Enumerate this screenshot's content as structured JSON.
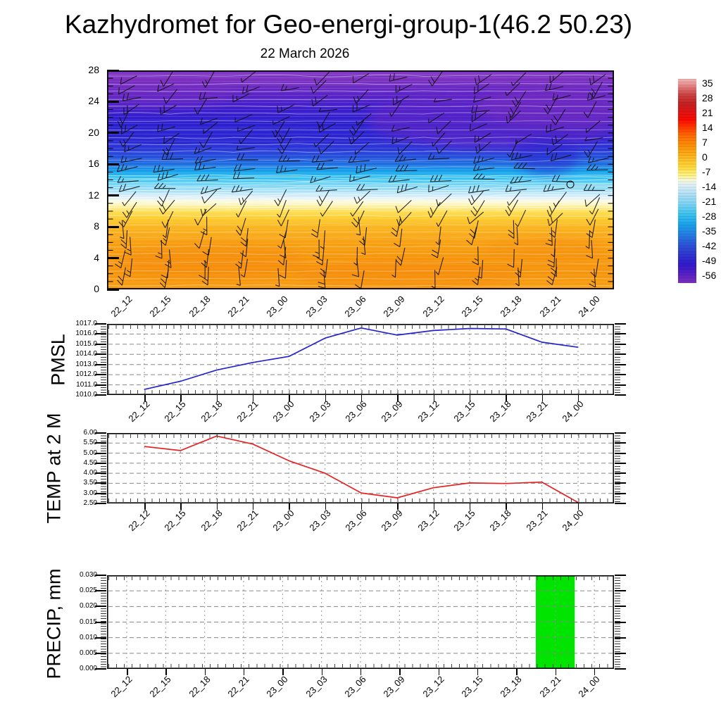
{
  "title": "Kazhydromet for Geo-energi-group-1(46.2 50.23)",
  "subtitle": "22 March 2026",
  "time_labels": [
    "22_12",
    "22_15",
    "22_18",
    "22_21",
    "23_00",
    "23_03",
    "23_06",
    "23_09",
    "23_12",
    "23_15",
    "23_18",
    "23_21",
    "24_00"
  ],
  "colorbar": {
    "tick_labels": [
      "35",
      "28",
      "21",
      "14",
      "7",
      "0",
      "-7",
      "-14",
      "-21",
      "-28",
      "-35",
      "-42",
      "-49",
      "-56"
    ],
    "gradient_stops": [
      [
        "0%",
        "#f0b4b4"
      ],
      [
        "2%",
        "#ec9c9c"
      ],
      [
        "5%",
        "#dc6a6a"
      ],
      [
        "8%",
        "#cc4040"
      ],
      [
        "12%",
        "#c42222"
      ],
      [
        "16%",
        "#e01414"
      ],
      [
        "20%",
        "#fa0a00"
      ],
      [
        "24%",
        "#ff3c00"
      ],
      [
        "28%",
        "#ff6c00"
      ],
      [
        "33%",
        "#fb9208"
      ],
      [
        "38%",
        "#fdb51e"
      ],
      [
        "43%",
        "#fed73a"
      ],
      [
        "47%",
        "#fef27e"
      ],
      [
        "50%",
        "#f6f8e0"
      ],
      [
        "52%",
        "#dfeff7"
      ],
      [
        "56%",
        "#b5e2f7"
      ],
      [
        "61%",
        "#7fd4f4"
      ],
      [
        "66%",
        "#3fc4f0"
      ],
      [
        "71%",
        "#1ba4ec"
      ],
      [
        "76%",
        "#2380e4"
      ],
      [
        "81%",
        "#2b57d8"
      ],
      [
        "86%",
        "#2f36d0"
      ],
      [
        "91%",
        "#3219cc"
      ],
      [
        "95%",
        "#521fc6"
      ],
      [
        "100%",
        "#7b2fbe"
      ]
    ]
  },
  "chart_data": [
    {
      "id": "temperature-height-cross-section",
      "type": "heatmap",
      "title": "22 March 2026",
      "x": [
        "22_12",
        "22_15",
        "22_18",
        "22_21",
        "23_00",
        "23_03",
        "23_06",
        "23_09",
        "23_12",
        "23_15",
        "23_18",
        "23_21",
        "24_00"
      ],
      "ylim": [
        0,
        28
      ],
      "yticks": [
        "28",
        "24",
        "20",
        "16",
        "12",
        "8",
        "4",
        "0"
      ],
      "colorbar_ticks": [
        35,
        28,
        21,
        14,
        7,
        0,
        -7,
        -14,
        -21,
        -28,
        -35,
        -42,
        -49,
        -56
      ],
      "overlay": "wind-barbs",
      "wind_barbs": {
        "seed": 11,
        "columns": 13,
        "rows": 21
      },
      "palette_stops_top_to_bottom": [
        [
          "0%",
          "#8038c4"
        ],
        [
          "4%",
          "#7b30c0"
        ],
        [
          "11%",
          "#5a24c6"
        ],
        [
          "18%",
          "#3a1ecc"
        ],
        [
          "25%",
          "#2b20ce"
        ],
        [
          "32%",
          "#2b28d2"
        ],
        [
          "36%",
          "#2c3ad8"
        ],
        [
          "40%",
          "#2456dc"
        ],
        [
          "43%",
          "#1e72e2"
        ],
        [
          "46%",
          "#17a2ec"
        ],
        [
          "49%",
          "#2ec0f2"
        ],
        [
          "52%",
          "#6cd2f5"
        ],
        [
          "55%",
          "#a5e0f8"
        ],
        [
          "57%",
          "#cbeafa"
        ],
        [
          "58.5%",
          "#e8f3f6"
        ],
        [
          "60%",
          "#fbfbdc"
        ],
        [
          "62%",
          "#fef0a0"
        ],
        [
          "64.5%",
          "#fedf55"
        ],
        [
          "68%",
          "#fdca2e"
        ],
        [
          "72%",
          "#fbb41e"
        ],
        [
          "77%",
          "#f9a414"
        ],
        [
          "84%",
          "#f79a0e"
        ],
        [
          "92%",
          "#f6940c"
        ],
        [
          "100%",
          "#f89e12"
        ]
      ]
    },
    {
      "id": "pmsl",
      "type": "line",
      "label": "PMSL",
      "color": "#2323cc",
      "x": [
        "22_12",
        "22_15",
        "22_18",
        "22_21",
        "23_00",
        "23_03",
        "23_06",
        "23_09",
        "23_12",
        "23_15",
        "23_18",
        "23_21",
        "24_00"
      ],
      "values": [
        1010.55,
        1011.35,
        1012.45,
        1013.2,
        1013.8,
        1015.6,
        1016.6,
        1015.9,
        1016.35,
        1016.55,
        1016.5,
        1015.2,
        1014.7
      ],
      "ylim": [
        1010,
        1017
      ],
      "yticks": [
        "1017.0",
        "1016.0",
        "1015.0",
        "1014.0",
        "1013.0",
        "1012.0",
        "1011.0",
        "1010.0"
      ]
    },
    {
      "id": "temp-2m",
      "type": "line",
      "label": "TEMP at 2 M",
      "color": "#e62222",
      "x": [
        "22_12",
        "22_15",
        "22_18",
        "22_21",
        "23_00",
        "23_03",
        "23_06",
        "23_09",
        "23_12",
        "23_15",
        "23_18",
        "23_21",
        "24_00"
      ],
      "values": [
        5.33,
        5.13,
        5.85,
        5.45,
        4.62,
        4.0,
        3.02,
        2.78,
        3.28,
        3.52,
        3.49,
        3.56,
        2.55
      ],
      "ylim": [
        2.5,
        6.0
      ],
      "yticks": [
        "6.00",
        "5.50",
        "5.00",
        "4.50",
        "4.00",
        "3.50",
        "3.00",
        "2.50"
      ]
    },
    {
      "id": "precip",
      "type": "bar",
      "label": "PRECIP, mm",
      "color": "#00e400",
      "x": [
        "22_12",
        "22_15",
        "22_18",
        "22_21",
        "23_00",
        "23_03",
        "23_06",
        "23_09",
        "23_12",
        "23_15",
        "23_18",
        "23_21",
        "24_00"
      ],
      "values": [
        0,
        0,
        0,
        0,
        0,
        0,
        0,
        0,
        0,
        0,
        0,
        0.03,
        0
      ],
      "ylim": [
        0,
        0.03
      ],
      "yticks": [
        "0.030",
        "0.025",
        "0.020",
        "0.015",
        "0.010",
        "0.005",
        "0.000"
      ]
    }
  ]
}
